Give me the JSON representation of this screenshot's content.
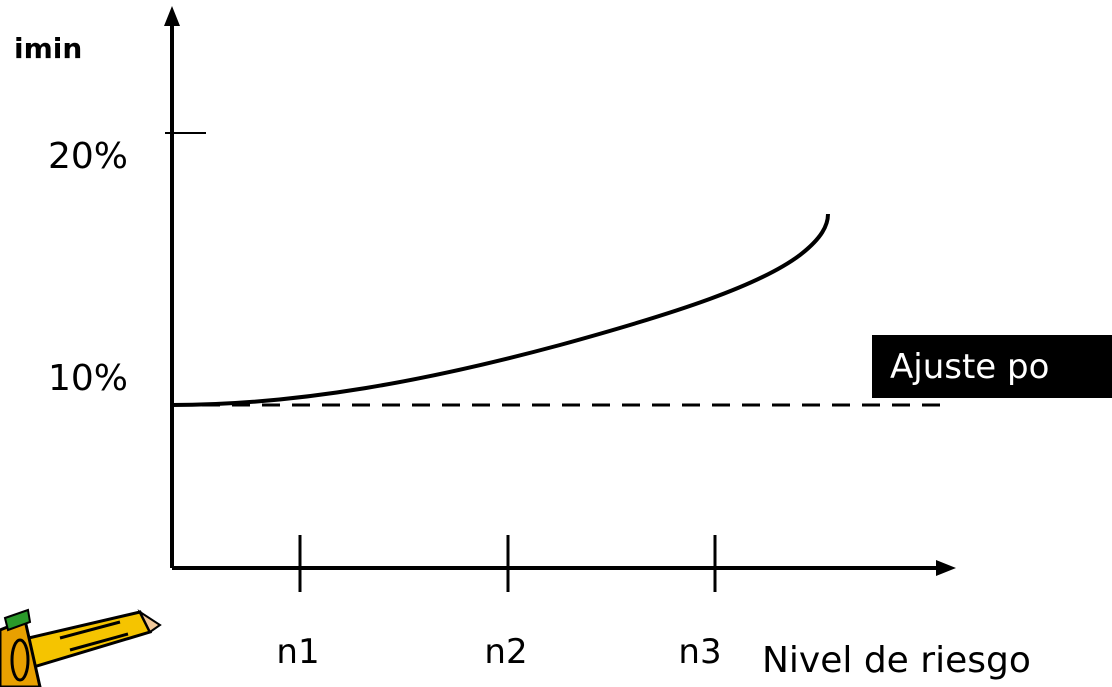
{
  "axes": {
    "y_label": "imin",
    "y_ticks": [
      "20%",
      "10%"
    ],
    "x_ticks": [
      "n1",
      "n2",
      "n3"
    ],
    "x_label": "Nivel de riesgo"
  },
  "callout": "Ajuste po"
}
